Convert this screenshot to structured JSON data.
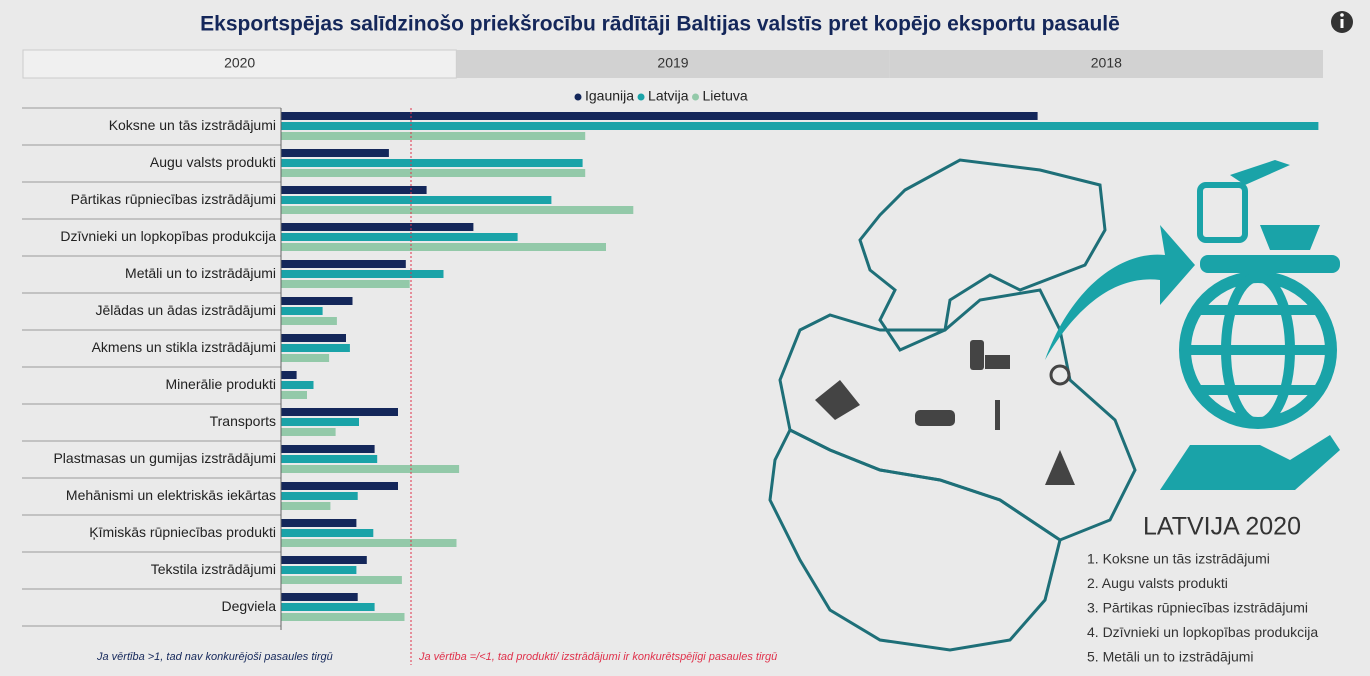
{
  "header": {
    "title": "Eksportspējas salīdzinošo priekšrocību rādītāji Baltijas valstīs pret kopējo eksportu pasaulē"
  },
  "tabs": [
    "2020",
    "2019",
    "2018"
  ],
  "chart_data": {
    "type": "hbar",
    "categories": [
      "Koksne un tās izstrādājumi",
      "Augu valsts produkti",
      "Pārtikas rūpniecības izstrādājumi",
      "Dzīvnieki un lopkopības produkcija",
      "Metāli un to izstrādājumi",
      "Jēlādas un ādas izstrādājumi",
      "Akmens un stikla izstrādājumi",
      "Minerālie produkti",
      "Transports",
      "Plastmasas un gumijas izstrādājumi",
      "Mehānismi un elektriskās iekārtas",
      "Ķīmiskās rūpniecības produkti",
      "Tekstila izstrādājumi",
      "Degviela"
    ],
    "series": [
      {
        "name": "Igaunija",
        "color": "#14275a",
        "values": [
          5.82,
          0.83,
          1.12,
          1.48,
          0.96,
          0.55,
          0.5,
          0.12,
          0.9,
          0.72,
          0.9,
          0.58,
          0.66,
          0.59
        ]
      },
      {
        "name": "Latvija",
        "color": "#1aa3a8",
        "values": [
          7.98,
          2.32,
          2.08,
          1.82,
          1.25,
          0.32,
          0.53,
          0.25,
          0.6,
          0.74,
          0.59,
          0.71,
          0.58,
          0.72
        ]
      },
      {
        "name": "Lietuva",
        "color": "#93c9a9",
        "values": [
          2.34,
          2.34,
          2.71,
          2.5,
          0.99,
          0.43,
          0.37,
          0.2,
          0.42,
          1.37,
          0.38,
          1.35,
          0.93,
          0.95
        ]
      }
    ],
    "xlim": [
      0,
      8
    ],
    "reference_line": {
      "value": 1,
      "color": "#e0314b"
    },
    "notes": [
      {
        "text": "Ja vērtība >1, tad nav konkurējoši pasaules tirgū",
        "color": "#14275a"
      },
      {
        "text": "Ja vērtība =/<1, tad produkti/ izstrādājumi ir konkurētspējīgi pasaules tirgū",
        "color": "#e0314b"
      }
    ]
  },
  "panel": {
    "title": "LATVIJA 2020",
    "items": [
      "1. Koksne un tās izstrādājumi",
      "2. Augu valsts produkti",
      "3. Pārtikas rūpniecības izstrādājumi",
      "4. Dzīvnieki un lopkopības produkcija",
      "5. Metāli un to izstrādājumi"
    ]
  }
}
